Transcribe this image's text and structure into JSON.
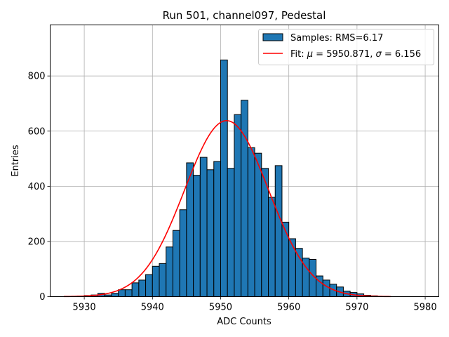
{
  "chart_data": {
    "type": "bar",
    "title": "Run 501, channel097, Pedestal",
    "xlabel": "ADC Counts",
    "ylabel": "Entries",
    "xlim": [
      5925,
      5982
    ],
    "ylim": [
      0,
      985
    ],
    "xticks": [
      5930,
      5940,
      5950,
      5960,
      5970,
      5980
    ],
    "yticks": [
      0,
      200,
      400,
      600,
      800
    ],
    "grid": true,
    "legend_position": "top-right",
    "bin_start": 5927,
    "bin_width": 1,
    "bin_counts": [
      0,
      1,
      2,
      4,
      6,
      12,
      6,
      12,
      25,
      25,
      50,
      60,
      80,
      110,
      120,
      180,
      240,
      315,
      485,
      440,
      505,
      460,
      490,
      858,
      465,
      660,
      712,
      540,
      520,
      465,
      360,
      475,
      270,
      210,
      175,
      140,
      135,
      75,
      60,
      45,
      35,
      20,
      15,
      10,
      5,
      3,
      1,
      0
    ],
    "series": [
      {
        "name": "Samples: RMS=6.17",
        "kind": "histogram",
        "color": "#1f77b4",
        "edgecolor": "#000000"
      },
      {
        "name": "Fit: μ = 5950.871, σ = 6.156",
        "kind": "gaussian-line",
        "color": "#ff0000",
        "mu": 5950.871,
        "sigma": 6.156,
        "amplitude": 638,
        "x_range": [
          5927,
          5975
        ]
      }
    ],
    "legend": {
      "hist_prefix": "Samples: RMS=6.17",
      "fit_prefix": "Fit: ",
      "fit_mu_symbol": "μ",
      "fit_mu_value": " = 5950.871, ",
      "fit_sigma_symbol": "σ",
      "fit_sigma_value": " = 6.156"
    }
  }
}
